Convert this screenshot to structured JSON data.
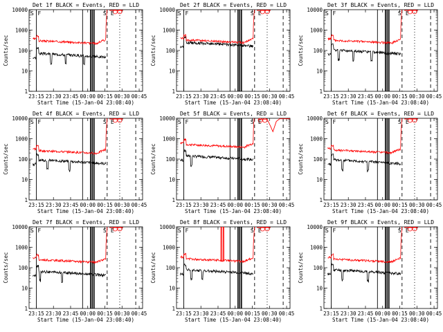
{
  "chart_data": {
    "type": "line",
    "panels": [
      {
        "title": "Det 1f BLACK = Events, RED = LLD",
        "events_base": 55,
        "lld_base": 220,
        "dips": [
          0.25,
          0.45,
          0.7
        ],
        "spikes": [],
        "extra_red": null
      },
      {
        "title": "Det 2f BLACK = Events, RED = LLD",
        "events_base": 190,
        "lld_base": 240,
        "dips": [],
        "spikes": [],
        "extra_red": null
      },
      {
        "title": "Det 3f BLACK = Events, RED = LLD",
        "events_base": 80,
        "lld_base": 230,
        "dips": [
          0.15,
          0.35,
          0.6
        ],
        "spikes": [],
        "extra_red": null
      },
      {
        "title": "Det 4f BLACK = Events, RED = LLD",
        "events_base": 70,
        "lld_base": 190,
        "dips": [
          0.2,
          0.5
        ],
        "spikes": [],
        "extra_red": null
      },
      {
        "title": "Det 5f BLACK = Events, RED = LLD",
        "events_base": 110,
        "lld_base": 380,
        "dips": [
          0.15
        ],
        "spikes": [],
        "extra_red": "dip"
      },
      {
        "title": "Det 6f BLACK = Events, RED = LLD",
        "events_base": 70,
        "lld_base": 200,
        "dips": [
          0.2,
          0.55
        ],
        "spikes": [],
        "extra_red": null
      },
      {
        "title": "Det 7f BLACK = Events, RED = LLD",
        "events_base": 50,
        "lld_base": 180,
        "dips": [
          0.1,
          0.4
        ],
        "spikes": [],
        "extra_red": null
      },
      {
        "title": "Det 8f BLACK = Events, RED = LLD",
        "events_base": 60,
        "lld_base": 200,
        "dips": [
          0.15,
          0.3
        ],
        "spikes": [
          0.56,
          0.59
        ],
        "extra_red": null
      },
      {
        "title": "Det 9f BLACK = Events, RED = LLD",
        "events_base": 60,
        "lld_base": 190,
        "dips": [
          0.2,
          0.55
        ],
        "spikes": [],
        "extra_red": null
      }
    ],
    "xlabel": "Start Time (15-Jan-04 23:08:40)",
    "ylabel": "Counts/sec",
    "x_tick_labels": [
      "23:15",
      "23:30",
      "23:45",
      "00:00",
      "00:15",
      "00:30",
      "00:45"
    ],
    "y_tick_labels": [
      "1",
      "10",
      "100",
      "1000",
      "10000"
    ],
    "yscale": "log",
    "ylim": [
      1,
      10000
    ],
    "markers": {
      "S": "S",
      "E": "E",
      "F": "F"
    },
    "series_colors": {
      "events": "#000000",
      "lld": "#ff0000"
    }
  }
}
